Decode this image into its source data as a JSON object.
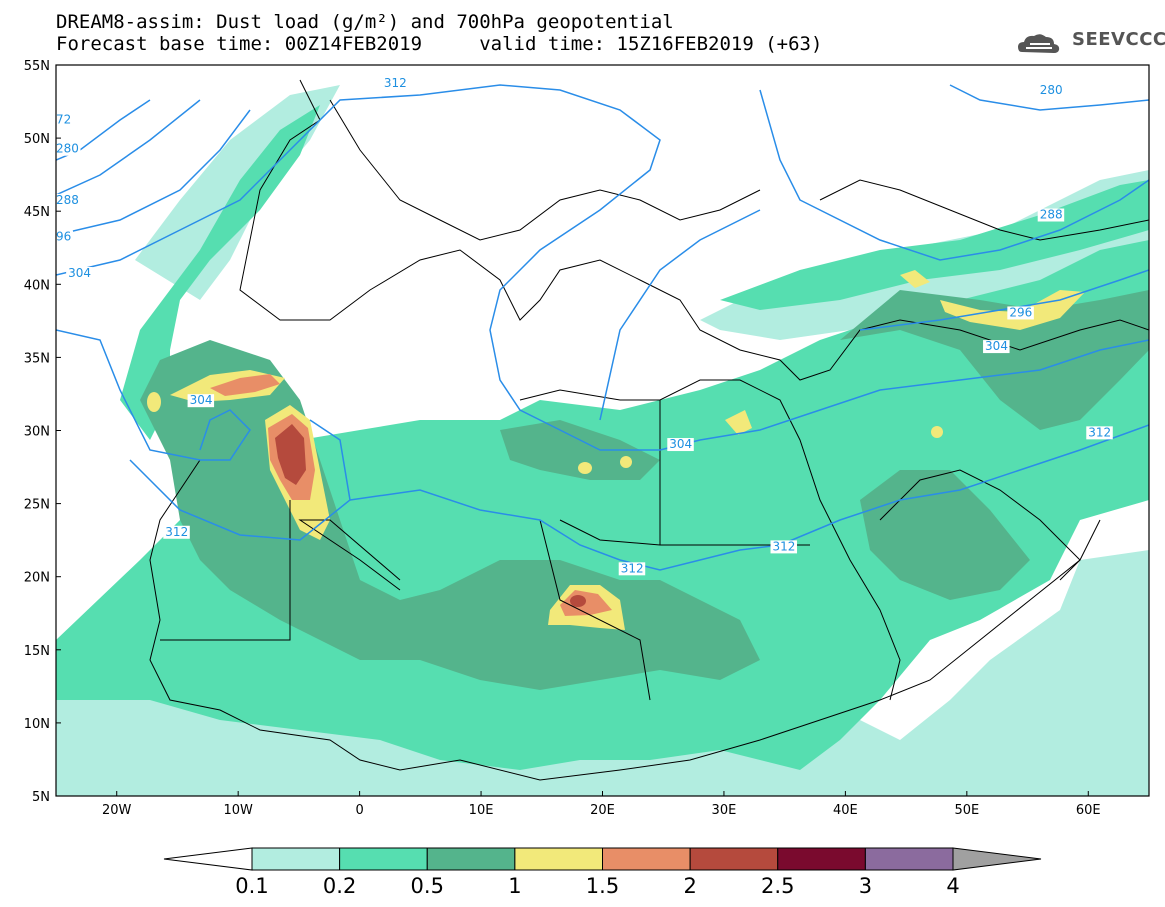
{
  "title": {
    "line1": "DREAM8-assim: Dust load (g/m²) and 700hPa geopotential",
    "line2": "Forecast base time: 00Z14FEB2019     valid time: 15Z16FEB2019 (+63)"
  },
  "logo": {
    "text": "SEEVCCC",
    "icon": "cloud-icon"
  },
  "axes": {
    "lat_labels": [
      "55N",
      "50N",
      "45N",
      "40N",
      "35N",
      "30N",
      "25N",
      "20N",
      "15N",
      "10N",
      "5N"
    ],
    "lon_labels": [
      "20W",
      "10W",
      "0",
      "10E",
      "20E",
      "30E",
      "40E",
      "50E",
      "60E"
    ],
    "lat_range": [
      5,
      55
    ],
    "lon_range": [
      -25,
      65
    ]
  },
  "contour_labels": [
    {
      "text": "312",
      "lon": 2,
      "lat": 53.5
    },
    {
      "text": "280",
      "lon": 56,
      "lat": 53
    },
    {
      "text": "72",
      "lon": -25,
      "lat": 51
    },
    {
      "text": "280",
      "lon": -25,
      "lat": 49
    },
    {
      "text": "288",
      "lon": -25,
      "lat": 45.5
    },
    {
      "text": "96",
      "lon": -25,
      "lat": 43
    },
    {
      "text": "304",
      "lon": -24,
      "lat": 40.5
    },
    {
      "text": "288",
      "lon": 56,
      "lat": 44.5
    },
    {
      "text": "296",
      "lon": 53.5,
      "lat": 37.8
    },
    {
      "text": "304",
      "lon": -14,
      "lat": 31.8
    },
    {
      "text": "304",
      "lon": 51.5,
      "lat": 35.5
    },
    {
      "text": "304",
      "lon": 25.5,
      "lat": 28.8
    },
    {
      "text": "312",
      "lon": 60,
      "lat": 29.6
    },
    {
      "text": "312",
      "lon": -16,
      "lat": 22.8
    },
    {
      "text": "312",
      "lon": 34,
      "lat": 21.8
    },
    {
      "text": "312",
      "lon": 21.5,
      "lat": 20.3
    }
  ],
  "colorbar": {
    "ticks": [
      "0.1",
      "0.2",
      "0.5",
      "1",
      "1.5",
      "2",
      "2.5",
      "3",
      "4"
    ],
    "colors": [
      "#ffffff",
      "#b2ede0",
      "#56deb0",
      "#54b48c",
      "#f2e97a",
      "#e88e67",
      "#b54a3d",
      "#7a0a2e",
      "#8b6b9e",
      "#a0a0a0"
    ]
  }
}
